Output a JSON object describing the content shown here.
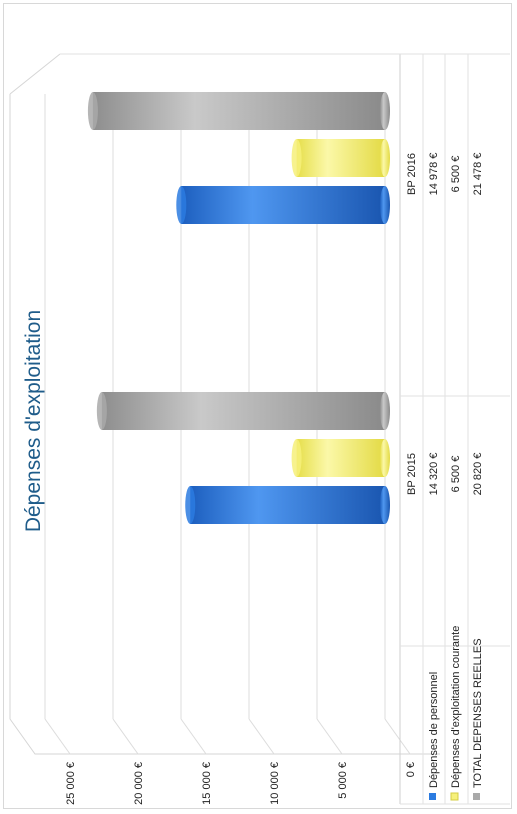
{
  "chart_data": {
    "type": "bar",
    "title": "Dépenses d'exploitation",
    "categories": [
      "BP 2015",
      "BP 2016"
    ],
    "series": [
      {
        "name": "Dépenses de personnel",
        "values": [
          14320,
          14978
        ],
        "labels": [
          "14 320 €",
          "14 978 €"
        ],
        "color": "#2b7be0"
      },
      {
        "name": "Dépenses d'exploitation courante",
        "values": [
          6500,
          6500
        ],
        "labels": [
          "6 500 €",
          "6 500 €"
        ],
        "color": "#f6f07a"
      },
      {
        "name": "TOTAL DEPENSES REELLES",
        "values": [
          20820,
          21478
        ],
        "labels": [
          "20 820 €",
          "21 478 €"
        ],
        "color": "#a9a9a9"
      }
    ],
    "ylim": [
      0,
      25000
    ],
    "y_ticks": [
      0,
      5000,
      10000,
      15000,
      20000,
      25000
    ],
    "y_tick_labels": [
      "0 €",
      "5 000 €",
      "10 000 €",
      "15 000 €",
      "20 000 €",
      "25 000 €"
    ],
    "grid": true,
    "legend": "bottom-table"
  }
}
